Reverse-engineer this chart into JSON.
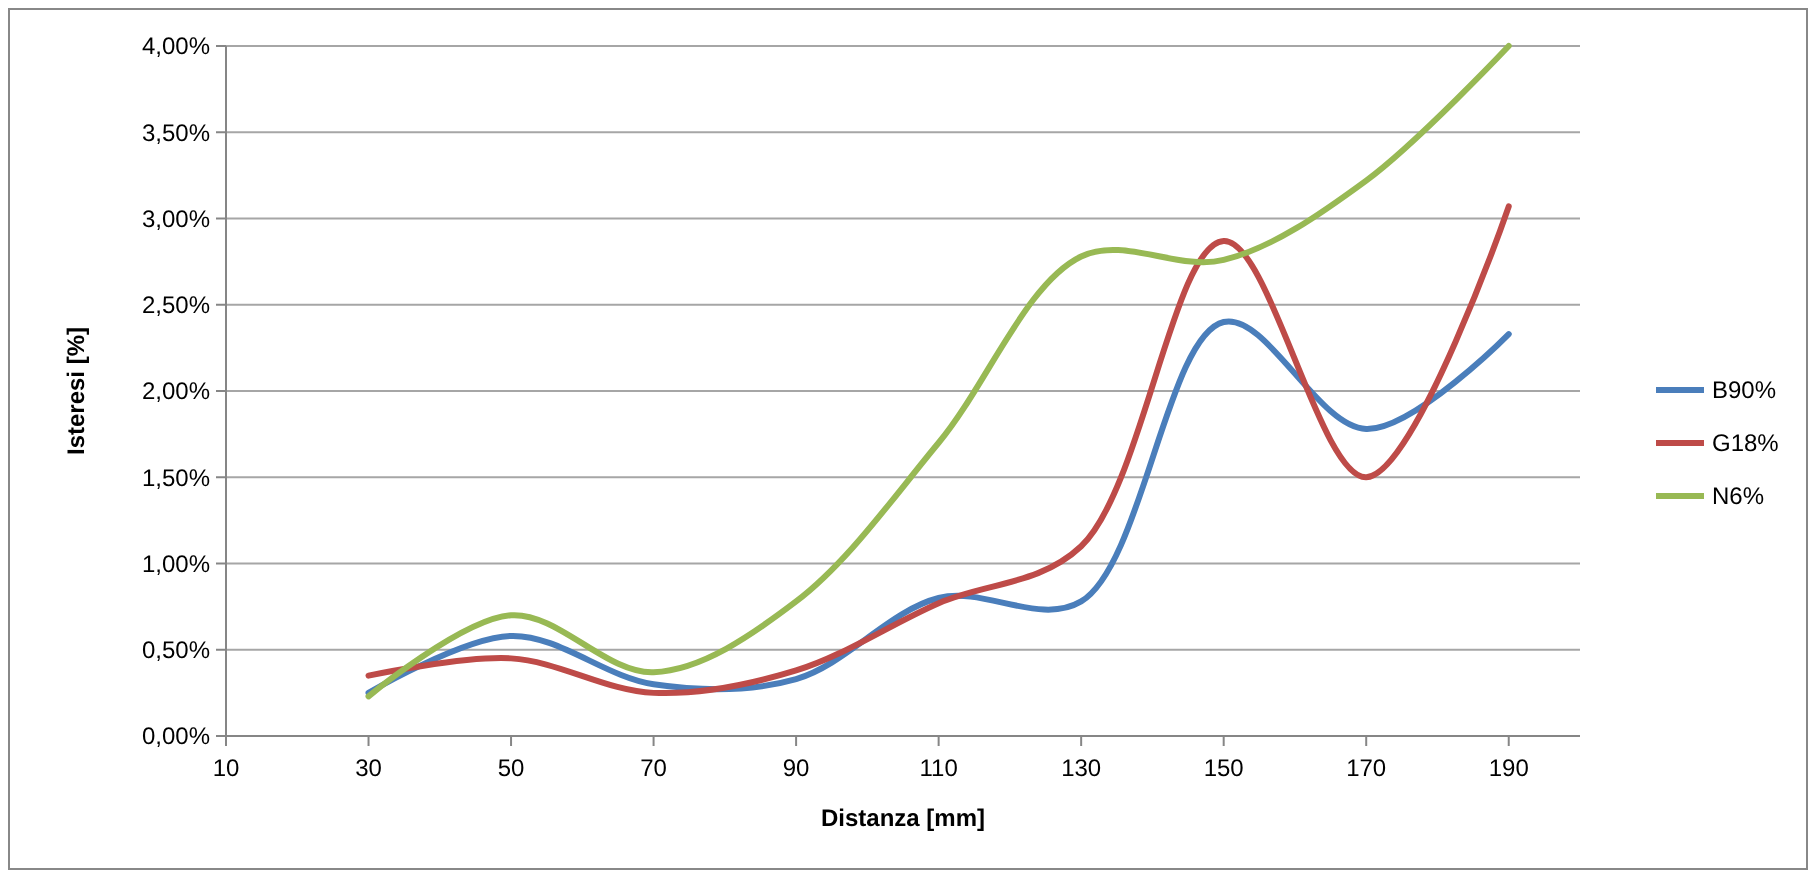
{
  "chart_data": {
    "type": "line",
    "xlabel": "Distanza [mm]",
    "ylabel": "Isteresi [%]",
    "x": [
      30,
      50,
      70,
      90,
      110,
      130,
      150,
      170,
      190
    ],
    "series": [
      {
        "name": "B90%",
        "color": "#4a7ebb",
        "values": [
          0.25,
          0.58,
          0.3,
          0.33,
          0.8,
          0.78,
          2.4,
          1.78,
          2.33
        ]
      },
      {
        "name": "G18%",
        "color": "#be4b48",
        "values": [
          0.35,
          0.45,
          0.25,
          0.38,
          0.77,
          1.1,
          2.87,
          1.5,
          3.07
        ]
      },
      {
        "name": "N6%",
        "color": "#98b954",
        "values": [
          0.23,
          0.7,
          0.37,
          0.78,
          1.7,
          2.78,
          2.76,
          3.22,
          4.0
        ]
      }
    ],
    "xlim": [
      10,
      200
    ],
    "xticks": [
      10,
      30,
      50,
      70,
      90,
      110,
      130,
      150,
      170,
      190
    ],
    "ylim": [
      0,
      4
    ],
    "yticks": [
      {
        "value": 0,
        "label": "0,00%"
      },
      {
        "value": 0.5,
        "label": "0,50%"
      },
      {
        "value": 1,
        "label": "1,00%"
      },
      {
        "value": 1.5,
        "label": "1,50%"
      },
      {
        "value": 2,
        "label": "2,00%"
      },
      {
        "value": 2.5,
        "label": "2,50%"
      },
      {
        "value": 3,
        "label": "3,00%"
      },
      {
        "value": 3.5,
        "label": "3,50%"
      },
      {
        "value": 4,
        "label": "4,00%"
      }
    ],
    "grid": "y",
    "legend": "right",
    "marker": "none",
    "line_style": "solid"
  }
}
